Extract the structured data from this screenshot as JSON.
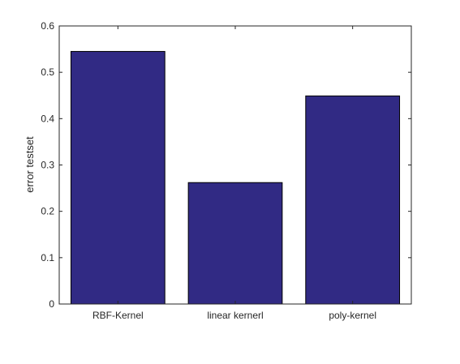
{
  "chart_data": {
    "type": "bar",
    "categories": [
      "RBF-Kernel",
      "linear kernerl",
      "poly-kernel"
    ],
    "values": [
      0.545,
      0.262,
      0.449
    ],
    "title": "",
    "xlabel": "",
    "ylabel": "error testset",
    "ylim": [
      0,
      0.6
    ],
    "yticks": [
      "0",
      "0.1",
      "0.2",
      "0.3",
      "0.4",
      "0.5",
      "0.6"
    ],
    "grid": false,
    "legend": "none",
    "bar_color": "#312a84",
    "edge_color": "#000000"
  }
}
